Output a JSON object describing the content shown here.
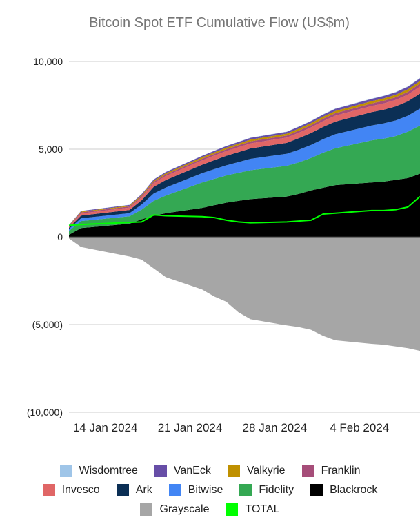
{
  "chart_data": {
    "type": "area",
    "stacked": true,
    "title": "Bitcoin Spot ETF Cumulative Flow (US$m)",
    "xlabel": "",
    "ylabel": "",
    "ylim": [
      -10000,
      10000
    ],
    "yticks": [
      {
        "value": 10000,
        "label": "10,000"
      },
      {
        "value": 5000,
        "label": "5,000"
      },
      {
        "value": 0,
        "label": "0"
      },
      {
        "value": -5000,
        "label": "(5,000)"
      },
      {
        "value": -10000,
        "label": "(10,000)"
      }
    ],
    "x": [
      "11 Jan 2024",
      "12 Jan 2024",
      "16 Jan 2024",
      "17 Jan 2024",
      "18 Jan 2024",
      "19 Jan 2024",
      "22 Jan 2024",
      "23 Jan 2024",
      "24 Jan 2024",
      "25 Jan 2024",
      "26 Jan 2024",
      "29 Jan 2024",
      "30 Jan 2024",
      "31 Jan 2024",
      "1 Feb 2024",
      "2 Feb 2024",
      "5 Feb 2024",
      "6 Feb 2024",
      "7 Feb 2024",
      "8 Feb 2024",
      "9 Feb 2024"
    ],
    "x_positions": [
      0,
      1,
      5,
      6,
      7,
      8,
      11,
      12,
      13,
      14,
      15,
      18,
      19,
      20,
      21,
      22,
      25,
      26,
      27,
      28,
      29
    ],
    "xticks": [
      {
        "pos": 3,
        "label": "14 Jan 2024"
      },
      {
        "pos": 10,
        "label": "21 Jan 2024"
      },
      {
        "pos": 17,
        "label": "28 Jan 2024"
      },
      {
        "pos": 24,
        "label": "4 Feb 2024"
      }
    ],
    "grid": true,
    "legend_position": "bottom",
    "series": [
      {
        "name": "Blackrock",
        "color": "#000000",
        "values": [
          112,
          500,
          750,
          1000,
          1200,
          1350,
          1650,
          1800,
          1950,
          2050,
          2150,
          2300,
          2450,
          2650,
          2800,
          2950,
          3100,
          3150,
          3250,
          3350,
          3600
        ]
      },
      {
        "name": "Fidelity",
        "color": "#34a853",
        "values": [
          227,
          400,
          420,
          550,
          850,
          1000,
          1450,
          1500,
          1550,
          1600,
          1650,
          1750,
          1800,
          1850,
          2000,
          2100,
          2400,
          2450,
          2500,
          2650,
          2750
        ]
      },
      {
        "name": "Bitwise",
        "color": "#4285f4",
        "values": [
          111,
          160,
          180,
          290,
          420,
          460,
          530,
          560,
          580,
          610,
          650,
          690,
          720,
          740,
          770,
          800,
          850,
          870,
          890,
          910,
          960
        ]
      },
      {
        "name": "Ark",
        "color": "#0b2f55",
        "values": [
          65,
          150,
          180,
          240,
          380,
          430,
          480,
          510,
          540,
          570,
          590,
          620,
          660,
          680,
          700,
          720,
          760,
          780,
          800,
          820,
          860
        ]
      },
      {
        "name": "Invesco",
        "color": "#e06666",
        "values": [
          72,
          125,
          140,
          170,
          210,
          230,
          250,
          260,
          270,
          280,
          290,
          300,
          310,
          320,
          330,
          340,
          350,
          360,
          370,
          380,
          400
        ]
      },
      {
        "name": "Franklin",
        "color": "#a64d79",
        "values": [
          40,
          60,
          62,
          70,
          80,
          85,
          95,
          100,
          105,
          110,
          115,
          120,
          125,
          130,
          135,
          140,
          145,
          150,
          155,
          160,
          170
        ]
      },
      {
        "name": "Valkyrie",
        "color": "#bf9000",
        "values": [
          20,
          40,
          45,
          55,
          65,
          70,
          80,
          85,
          90,
          95,
          100,
          105,
          110,
          115,
          120,
          125,
          130,
          135,
          140,
          145,
          150
        ]
      },
      {
        "name": "VanEck",
        "color": "#674ea7",
        "values": [
          20,
          40,
          45,
          55,
          65,
          70,
          80,
          85,
          90,
          95,
          100,
          105,
          110,
          115,
          120,
          125,
          130,
          135,
          140,
          145,
          150
        ]
      },
      {
        "name": "Wisdomtree",
        "color": "#9fc5e8",
        "values": [
          3,
          6,
          7,
          8,
          9,
          10,
          11,
          12,
          13,
          14,
          15,
          16,
          17,
          18,
          19,
          20,
          21,
          22,
          23,
          24,
          25
        ]
      },
      {
        "name": "Grayscale",
        "color": "#a6a6a6",
        "negative": true,
        "values": [
          -95,
          -580,
          -1120,
          -1300,
          -1800,
          -2300,
          -3000,
          -3400,
          -3700,
          -4300,
          -4700,
          -5050,
          -5150,
          -5300,
          -5650,
          -5900,
          -6100,
          -6150,
          -6250,
          -6350,
          -6500
        ]
      },
      {
        "name": "TOTAL",
        "color": "#00ff00",
        "type": "line",
        "values": [
          655,
          700,
          820,
          850,
          1250,
          1200,
          1150,
          1100,
          950,
          850,
          800,
          850,
          900,
          950,
          1300,
          1350,
          1500,
          1500,
          1550,
          1700,
          2300
        ]
      }
    ]
  },
  "legend": {
    "rows": [
      [
        {
          "name": "Wisdomtree",
          "color": "#9fc5e8"
        },
        {
          "name": "VanEck",
          "color": "#674ea7"
        },
        {
          "name": "Valkyrie",
          "color": "#bf9000"
        },
        {
          "name": "Franklin",
          "color": "#a64d79"
        }
      ],
      [
        {
          "name": "Invesco",
          "color": "#e06666"
        },
        {
          "name": "Ark",
          "color": "#0b2f55"
        },
        {
          "name": "Bitwise",
          "color": "#4285f4"
        },
        {
          "name": "Fidelity",
          "color": "#34a853"
        },
        {
          "name": "Blackrock",
          "color": "#000000"
        }
      ],
      [
        {
          "name": "Grayscale",
          "color": "#a6a6a6"
        },
        {
          "name": "TOTAL",
          "color": "#00ff00"
        }
      ]
    ]
  }
}
